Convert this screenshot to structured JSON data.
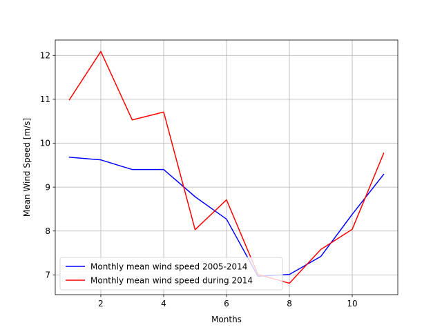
{
  "chart_data": {
    "type": "line",
    "title": "",
    "xlabel": "Months",
    "ylabel": "Mean Wind Speed [m/s]",
    "xlim": [
      0.55,
      11.45
    ],
    "ylim": [
      6.55,
      12.35
    ],
    "xticks": [
      2,
      4,
      6,
      8,
      10
    ],
    "yticks": [
      7,
      8,
      9,
      10,
      11,
      12
    ],
    "grid": true,
    "legend_position": "lower-left",
    "x": [
      1,
      2,
      3,
      4,
      5,
      6,
      7,
      8,
      9,
      10,
      11
    ],
    "series": [
      {
        "name": "Monthly mean wind speed 2005-2014",
        "color": "#0000ff",
        "values": [
          9.68,
          9.62,
          9.4,
          9.4,
          8.78,
          8.27,
          6.97,
          7.01,
          7.42,
          8.38,
          9.29
        ]
      },
      {
        "name": "Monthly mean wind speed during 2014",
        "color": "#ff0000",
        "values": [
          10.99,
          12.09,
          10.53,
          10.71,
          8.03,
          8.71,
          7.01,
          6.81,
          7.58,
          8.04,
          9.77
        ]
      }
    ]
  }
}
